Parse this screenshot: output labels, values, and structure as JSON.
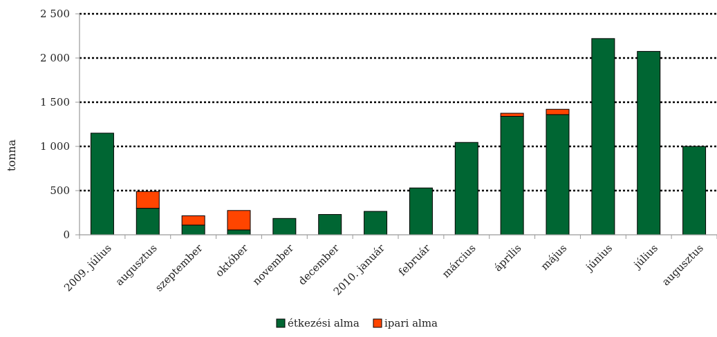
{
  "chart_data": {
    "type": "bar",
    "stacked": true,
    "categories": [
      "2009. július",
      "augusztus",
      "szeptember",
      "október",
      "november",
      "december",
      "2010. január",
      "február",
      "március",
      "április",
      "május",
      "június",
      "július",
      "augusztus"
    ],
    "series": [
      {
        "name": "étkezési alma",
        "color": "#006633",
        "values": [
          1150,
          300,
          110,
          55,
          185,
          230,
          265,
          530,
          1045,
          1340,
          1360,
          2220,
          2075,
          1000
        ]
      },
      {
        "name": "ipari alma",
        "color": "#ff4500",
        "values": [
          0,
          190,
          105,
          220,
          0,
          0,
          0,
          0,
          0,
          35,
          60,
          0,
          0,
          0
        ]
      }
    ],
    "ylabel": "tonna",
    "xlabel": "",
    "ylim": [
      0,
      2500
    ],
    "yticks": [
      0,
      500,
      1000,
      1500,
      2000,
      2500
    ],
    "ytick_labels": [
      "0",
      "500",
      "1 000",
      "1 500",
      "2 000",
      "2 500"
    ],
    "grid": "horizontal dotted",
    "legend_position": "bottom"
  }
}
